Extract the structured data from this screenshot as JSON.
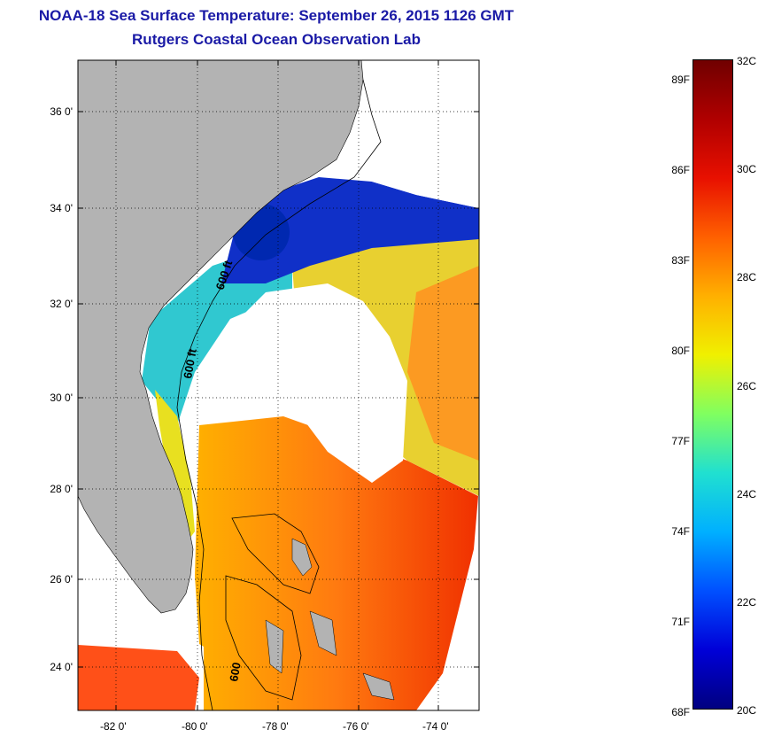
{
  "title": {
    "line1": "NOAA-18 Sea Surface Temperature:  September 26, 2015 1126 GMT",
    "line2": "Rutgers Coastal Ocean Observation Lab"
  },
  "map": {
    "lat_labels": [
      "36 0'",
      "34 0'",
      "32 0'",
      "30 0'",
      "28 0'",
      "26 0'",
      "24 0'"
    ],
    "lon_labels": [
      "-82 0'",
      "-80 0'",
      "-78 0'",
      "-76 0'",
      "-74 0'"
    ],
    "contour_labels": [
      "600 ft",
      "600 ft",
      "600"
    ],
    "land_color": "#b3b3b3",
    "cloud_color": "#ffffff"
  },
  "colorbar": {
    "fahrenheit_labels": [
      "89F",
      "86F",
      "83F",
      "80F",
      "77F",
      "74F",
      "71F",
      "68F"
    ],
    "celsius_labels": [
      "32C",
      "30C",
      "28C",
      "26C",
      "24C",
      "22C",
      "20C"
    ],
    "range_c": [
      20,
      32
    ],
    "gradient": [
      "#000080",
      "#0000d8",
      "#0050ff",
      "#00b0ff",
      "#20e0d0",
      "#80ff60",
      "#f0f000",
      "#ffb000",
      "#ff6000",
      "#e81000",
      "#b00000",
      "#700000"
    ]
  }
}
